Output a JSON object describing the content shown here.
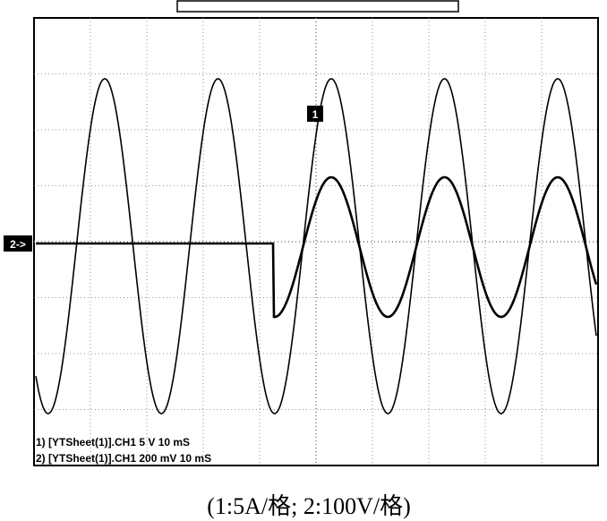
{
  "screen": {
    "channel_labels": [
      "1) [YTSheet(1)].CH1  5  V   10 mS",
      "2) [YTSheet(1)].CH1  200 mV   10 mS"
    ],
    "markers": {
      "ch1": "1",
      "ch2": "2->"
    }
  },
  "caption": "(1:5A/格; 2:100V/格)"
}
